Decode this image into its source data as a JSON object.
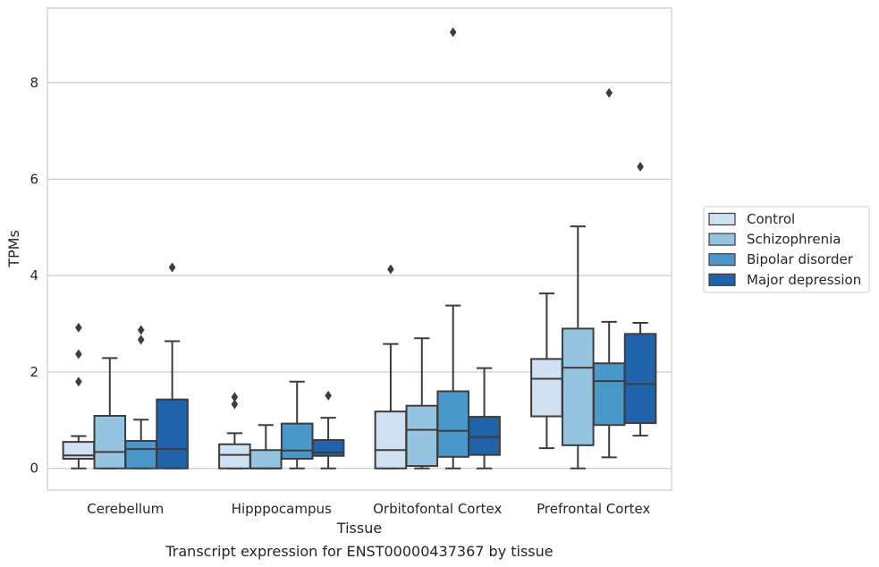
{
  "chart_data": {
    "type": "boxplot",
    "caption": "Transcript expression for ENST00000437367 by tissue",
    "xlabel": "Tissue",
    "ylabel": "TPMs",
    "ylim": [
      -0.45,
      9.55
    ],
    "yticks": [
      0,
      2,
      4,
      6,
      8
    ],
    "grid": "horizontal",
    "legend_position": "right",
    "categories": [
      "Cerebellum",
      "Hipppocampus",
      "Orbitofontal Cortex",
      "Prefrontal Cortex"
    ],
    "series": [
      {
        "name": "Control",
        "color": "#d0e1f2",
        "boxes": [
          {
            "whislo": 0.0,
            "q1": 0.2,
            "med": 0.27,
            "q3": 0.55,
            "whishi": 0.67,
            "fliers": [
              1.8,
              2.37,
              2.92
            ]
          },
          {
            "whislo": 0.0,
            "q1": 0.0,
            "med": 0.28,
            "q3": 0.5,
            "whishi": 0.73,
            "fliers": [
              1.33,
              1.48
            ]
          },
          {
            "whislo": 0.0,
            "q1": 0.0,
            "med": 0.38,
            "q3": 1.18,
            "whishi": 2.58,
            "fliers": [
              4.13
            ]
          },
          {
            "whislo": 0.42,
            "q1": 1.08,
            "med": 1.86,
            "q3": 2.27,
            "whishi": 3.63,
            "fliers": []
          }
        ]
      },
      {
        "name": "Schizophrenia",
        "color": "#94c4df",
        "boxes": [
          {
            "whislo": 0.0,
            "q1": 0.0,
            "med": 0.34,
            "q3": 1.09,
            "whishi": 2.29,
            "fliers": []
          },
          {
            "whislo": 0.0,
            "q1": 0.0,
            "med": 0.0,
            "q3": 0.38,
            "whishi": 0.9,
            "fliers": []
          },
          {
            "whislo": 0.0,
            "q1": 0.05,
            "med": 0.8,
            "q3": 1.3,
            "whishi": 2.7,
            "fliers": []
          },
          {
            "whislo": 0.0,
            "q1": 0.48,
            "med": 2.09,
            "q3": 2.9,
            "whishi": 5.02,
            "fliers": []
          }
        ]
      },
      {
        "name": "Bipolar disorder",
        "color": "#4a98c9",
        "boxes": [
          {
            "whislo": 0.0,
            "q1": 0.0,
            "med": 0.4,
            "q3": 0.57,
            "whishi": 1.01,
            "fliers": [
              2.67,
              2.87
            ]
          },
          {
            "whislo": 0.0,
            "q1": 0.2,
            "med": 0.37,
            "q3": 0.93,
            "whishi": 1.8,
            "fliers": []
          },
          {
            "whislo": 0.0,
            "q1": 0.24,
            "med": 0.78,
            "q3": 1.6,
            "whishi": 3.38,
            "fliers": [
              9.05
            ]
          },
          {
            "whislo": 0.23,
            "q1": 0.9,
            "med": 1.81,
            "q3": 2.18,
            "whishi": 3.04,
            "fliers": [
              7.79
            ]
          }
        ]
      },
      {
        "name": "Major depression",
        "color": "#2163aa",
        "boxes": [
          {
            "whislo": 0.0,
            "q1": 0.0,
            "med": 0.4,
            "q3": 1.43,
            "whishi": 2.64,
            "fliers": [
              4.17
            ]
          },
          {
            "whislo": 0.0,
            "q1": 0.26,
            "med": 0.33,
            "q3": 0.59,
            "whishi": 1.05,
            "fliers": [
              1.51
            ]
          },
          {
            "whislo": 0.0,
            "q1": 0.28,
            "med": 0.65,
            "q3": 1.07,
            "whishi": 2.08,
            "fliers": []
          },
          {
            "whislo": 0.68,
            "q1": 0.94,
            "med": 1.75,
            "q3": 2.79,
            "whishi": 3.02,
            "fliers": [
              6.26
            ]
          }
        ]
      }
    ]
  }
}
